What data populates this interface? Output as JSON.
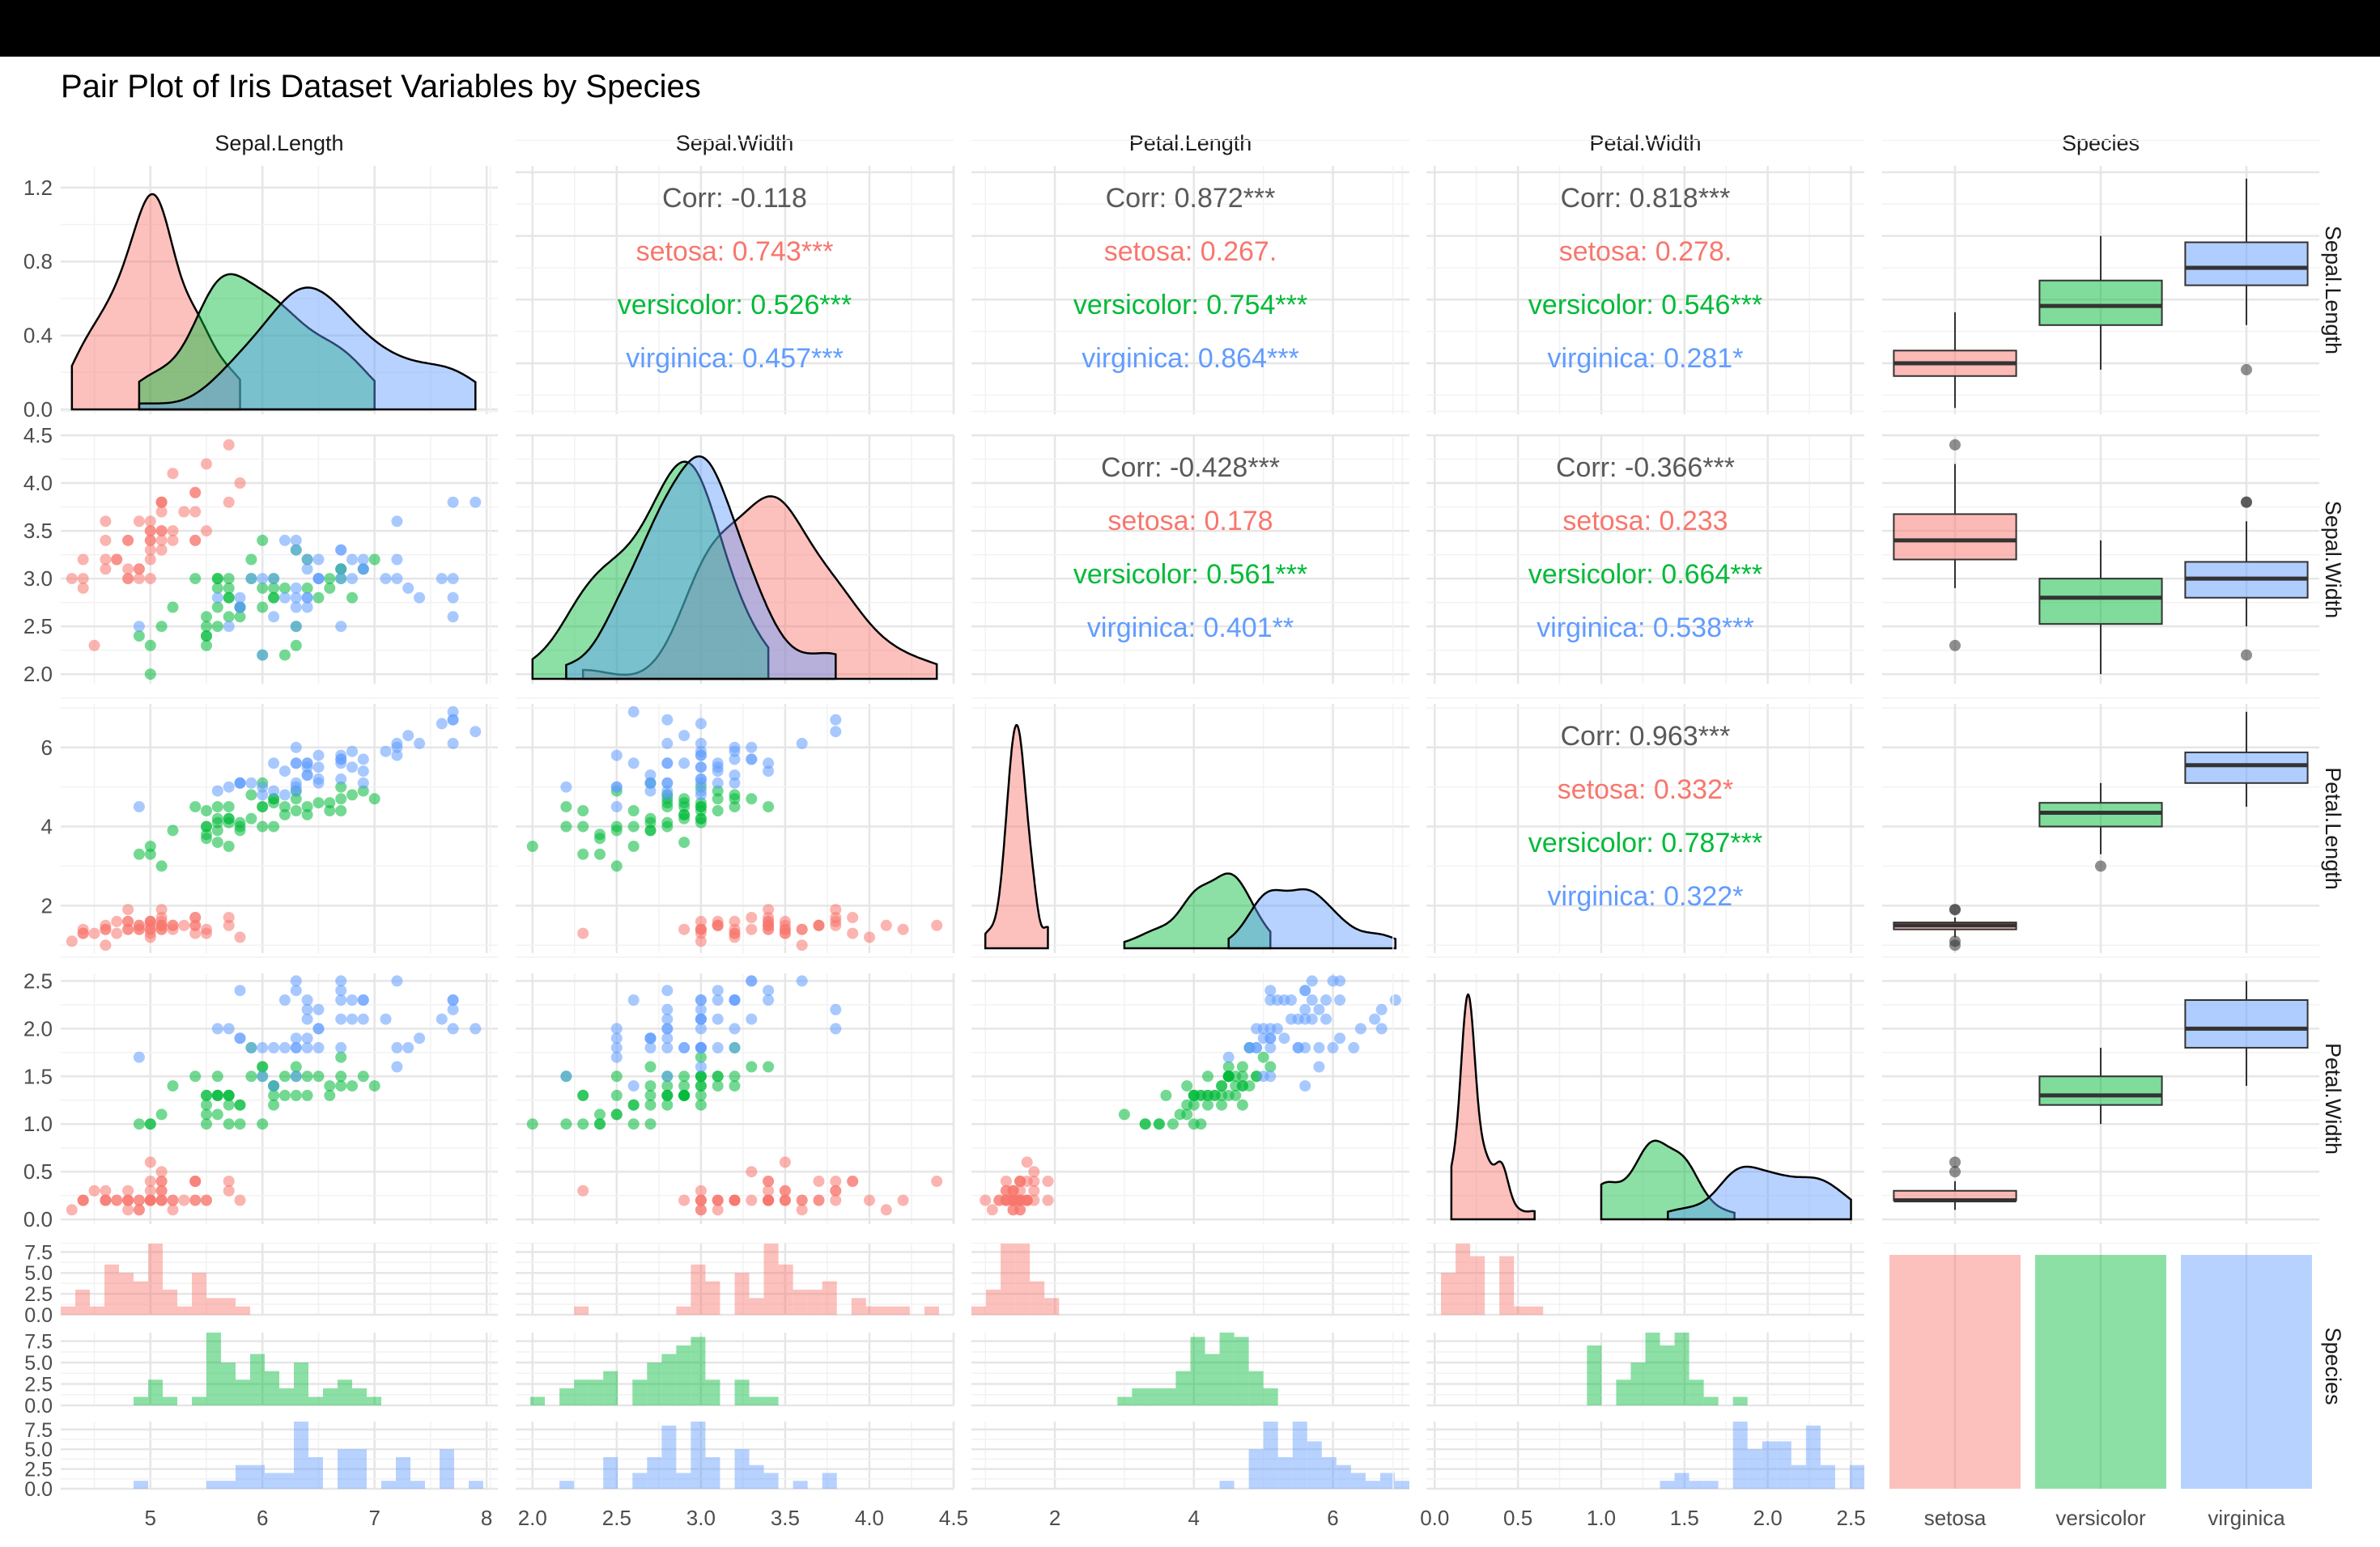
{
  "chart_data": {
    "type": "pair-plot",
    "title": "Pair Plot of Iris Dataset Variables by Species",
    "variables": [
      "Sepal.Length",
      "Sepal.Width",
      "Petal.Length",
      "Petal.Width",
      "Species"
    ],
    "species": [
      "setosa",
      "versicolor",
      "virginica"
    ],
    "colors": {
      "setosa": "#F8766D",
      "versicolor": "#00BA38",
      "virginica": "#619CFF",
      "corr_total": "#595959"
    },
    "axes": {
      "Sepal.Length": {
        "range": [
          4.2,
          8.1
        ],
        "ticks": [
          "5",
          "6",
          "7",
          "8"
        ]
      },
      "Sepal.Width": {
        "range": [
          1.9,
          4.5
        ],
        "ticks": [
          "2.0",
          "2.5",
          "3.0",
          "3.5",
          "4.0",
          "4.5"
        ]
      },
      "Petal.Length": {
        "range": [
          0.8,
          7.1
        ],
        "ticks": [
          "2",
          "4",
          "6"
        ]
      },
      "Petal.Width": {
        "range": [
          -0.05,
          2.58
        ],
        "ticks": [
          "0.0",
          "0.5",
          "1.0",
          "1.5",
          "2.0",
          "2.5"
        ]
      }
    },
    "density_y_ticks": [
      "0.0",
      "0.4",
      "0.8",
      "1.2"
    ],
    "density_y_range": [
      0,
      1.3
    ],
    "histogram_y_ticks": [
      "0.0",
      "2.5",
      "5.0",
      "7.5"
    ],
    "histogram_y_range": [
      0,
      8.5
    ],
    "correlations": [
      {
        "pair": [
          "Sepal.Length",
          "Sepal.Width"
        ],
        "total": "Corr: -0.118",
        "setosa": "setosa: 0.743***",
        "versicolor": "versicolor: 0.526***",
        "virginica": "virginica: 0.457***"
      },
      {
        "pair": [
          "Sepal.Length",
          "Petal.Length"
        ],
        "total": "Corr: 0.872***",
        "setosa": "setosa: 0.267.",
        "versicolor": "versicolor: 0.754***",
        "virginica": "virginica: 0.864***"
      },
      {
        "pair": [
          "Sepal.Length",
          "Petal.Width"
        ],
        "total": "Corr: 0.818***",
        "setosa": "setosa: 0.278.",
        "versicolor": "versicolor: 0.546***",
        "virginica": "virginica: 0.281*"
      },
      {
        "pair": [
          "Sepal.Width",
          "Petal.Length"
        ],
        "total": "Corr: -0.428***",
        "setosa": "setosa: 0.178",
        "versicolor": "versicolor: 0.561***",
        "virginica": "virginica: 0.401**"
      },
      {
        "pair": [
          "Sepal.Width",
          "Petal.Width"
        ],
        "total": "Corr: -0.366***",
        "setosa": "setosa: 0.233",
        "versicolor": "versicolor: 0.664***",
        "virginica": "virginica: 0.538***"
      },
      {
        "pair": [
          "Petal.Length",
          "Petal.Width"
        ],
        "total": "Corr: 0.963***",
        "setosa": "setosa: 0.332*",
        "versicolor": "versicolor: 0.787***",
        "virginica": "virginica: 0.322*"
      }
    ],
    "species_counts": [
      50,
      50,
      50
    ],
    "data_rows": [
      "5.1,3.5,1.4,0.2,s",
      "4.9,3.0,1.4,0.2,s",
      "4.7,3.2,1.3,0.2,s",
      "4.6,3.1,1.5,0.2,s",
      "5.0,3.6,1.4,0.2,s",
      "5.4,3.9,1.7,0.4,s",
      "4.6,3.4,1.4,0.3,s",
      "5.0,3.4,1.5,0.2,s",
      "4.4,2.9,1.4,0.2,s",
      "4.9,3.1,1.5,0.1,s",
      "5.4,3.7,1.5,0.2,s",
      "4.8,3.4,1.6,0.2,s",
      "4.8,3.0,1.4,0.1,s",
      "4.3,3.0,1.1,0.1,s",
      "5.8,4.0,1.2,0.2,s",
      "5.7,4.4,1.5,0.4,s",
      "5.4,3.9,1.3,0.4,s",
      "5.1,3.5,1.4,0.3,s",
      "5.7,3.8,1.7,0.3,s",
      "5.1,3.8,1.5,0.3,s",
      "5.4,3.4,1.7,0.2,s",
      "5.1,3.7,1.5,0.4,s",
      "4.6,3.6,1.0,0.2,s",
      "5.1,3.3,1.7,0.5,s",
      "4.8,3.4,1.9,0.2,s",
      "5.0,3.0,1.6,0.2,s",
      "5.0,3.4,1.6,0.4,s",
      "5.2,3.5,1.5,0.2,s",
      "5.2,3.4,1.4,0.2,s",
      "4.7,3.2,1.6,0.2,s",
      "4.8,3.1,1.6,0.2,s",
      "5.4,3.4,1.5,0.4,s",
      "5.2,4.1,1.5,0.1,s",
      "5.5,4.2,1.4,0.2,s",
      "4.9,3.1,1.5,0.2,s",
      "5.0,3.2,1.2,0.2,s",
      "5.5,3.5,1.3,0.2,s",
      "4.9,3.6,1.4,0.1,s",
      "4.4,3.0,1.3,0.2,s",
      "5.1,3.4,1.5,0.2,s",
      "5.0,3.5,1.3,0.3,s",
      "4.5,2.3,1.3,0.3,s",
      "4.4,3.2,1.3,0.2,s",
      "5.0,3.5,1.6,0.6,s",
      "5.1,3.8,1.9,0.4,s",
      "4.8,3.0,1.4,0.3,s",
      "5.1,3.8,1.6,0.2,s",
      "4.6,3.2,1.4,0.2,s",
      "5.3,3.7,1.5,0.2,s",
      "5.0,3.3,1.4,0.2,s",
      "7.0,3.2,4.7,1.4,c",
      "6.4,3.2,4.5,1.5,c",
      "6.9,3.1,4.9,1.5,c",
      "5.5,2.3,4.0,1.3,c",
      "6.5,2.8,4.6,1.5,c",
      "5.7,2.8,4.5,1.3,c",
      "6.3,3.3,4.7,1.6,c",
      "4.9,2.4,3.3,1.0,c",
      "6.6,2.9,4.6,1.3,c",
      "5.2,2.7,3.9,1.4,c",
      "5.0,2.0,3.5,1.0,c",
      "5.9,3.0,4.2,1.5,c",
      "6.0,2.2,4.0,1.0,c",
      "6.1,2.9,4.7,1.4,c",
      "5.6,2.9,3.6,1.3,c",
      "6.7,3.1,4.4,1.4,c",
      "5.6,3.0,4.5,1.5,c",
      "5.8,2.7,4.1,1.0,c",
      "6.2,2.2,4.5,1.5,c",
      "5.6,2.5,3.9,1.1,c",
      "5.9,3.2,4.8,1.8,c",
      "6.1,2.8,4.0,1.3,c",
      "6.3,2.5,4.9,1.5,c",
      "6.1,2.8,4.7,1.2,c",
      "6.4,2.9,4.3,1.3,c",
      "6.6,3.0,4.4,1.4,c",
      "6.8,2.8,4.8,1.4,c",
      "6.7,3.0,5.0,1.7,c",
      "6.0,2.9,4.5,1.5,c",
      "5.7,2.6,3.5,1.0,c",
      "5.5,2.4,3.8,1.1,c",
      "5.5,2.4,3.7,1.0,c",
      "5.8,2.7,3.9,1.2,c",
      "6.0,2.7,5.1,1.6,c",
      "5.4,3.0,4.5,1.5,c",
      "6.0,3.4,4.5,1.6,c",
      "6.7,3.1,4.7,1.5,c",
      "6.3,2.3,4.4,1.3,c",
      "5.6,3.0,4.1,1.3,c",
      "5.5,2.5,4.0,1.3,c",
      "5.5,2.6,4.4,1.2,c",
      "6.1,3.0,4.6,1.4,c",
      "5.8,2.6,4.0,1.2,c",
      "5.0,2.3,3.3,1.0,c",
      "5.6,2.7,4.2,1.3,c",
      "5.7,3.0,4.2,1.2,c",
      "5.7,2.9,4.2,1.3,c",
      "6.2,2.9,4.3,1.3,c",
      "5.1,2.5,3.0,1.1,c",
      "5.7,2.8,4.1,1.3,c",
      "6.3,3.3,6.0,2.5,v",
      "5.8,2.7,5.1,1.9,v",
      "7.1,3.0,5.9,2.1,v",
      "6.3,2.9,5.6,1.8,v",
      "6.5,3.0,5.8,2.2,v",
      "7.6,3.0,6.6,2.1,v",
      "4.9,2.5,4.5,1.7,v",
      "7.3,2.9,6.3,1.8,v",
      "6.7,2.5,5.8,1.8,v",
      "7.2,3.6,6.1,2.5,v",
      "6.5,3.2,5.1,2.0,v",
      "6.4,2.7,5.3,1.9,v",
      "6.8,3.0,5.5,2.1,v",
      "5.7,2.5,5.0,2.0,v",
      "5.8,2.8,5.1,2.4,v",
      "6.4,3.2,5.3,2.3,v",
      "6.5,3.0,5.5,1.8,v",
      "7.7,3.8,6.7,2.2,v",
      "7.7,2.6,6.9,2.3,v",
      "6.0,2.2,5.0,1.5,v",
      "6.9,3.2,5.7,2.3,v",
      "5.6,2.8,4.9,2.0,v",
      "7.7,2.8,6.7,2.0,v",
      "6.3,2.7,4.9,1.8,v",
      "6.7,3.3,5.7,2.1,v",
      "7.2,3.2,6.0,1.8,v",
      "6.2,2.8,4.8,1.8,v",
      "6.1,3.0,4.9,1.8,v",
      "6.4,2.8,5.6,2.1,v",
      "7.2,3.0,5.8,1.6,v",
      "7.4,2.8,6.1,1.9,v",
      "7.9,3.8,6.4,2.0,v",
      "6.4,2.8,5.6,2.2,v",
      "6.3,2.8,5.1,1.5,v",
      "6.1,2.6,5.6,1.4,v",
      "7.7,3.0,6.1,2.3,v",
      "6.3,3.4,5.6,2.4,v",
      "6.4,3.1,5.5,1.8,v",
      "6.0,3.0,4.8,1.8,v",
      "6.9,3.1,5.4,2.1,v",
      "6.7,3.1,5.6,2.4,v",
      "6.9,3.1,5.1,2.3,v",
      "5.8,2.7,5.1,1.9,v",
      "6.8,3.2,5.9,2.3,v",
      "6.7,3.3,5.7,2.5,v",
      "6.7,3.0,5.2,2.3,v",
      "6.3,2.5,5.0,1.9,v",
      "6.5,3.0,5.2,2.0,v",
      "6.2,3.4,5.4,2.3,v",
      "5.9,3.0,5.1,1.8,v"
    ]
  }
}
